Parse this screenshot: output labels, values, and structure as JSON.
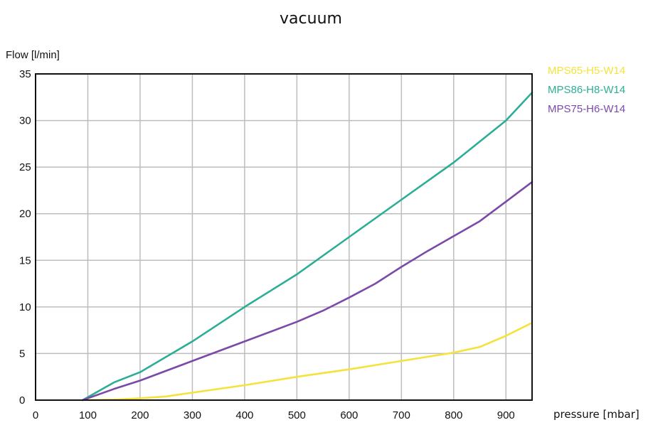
{
  "chart_data": {
    "type": "line",
    "title": "vacuum",
    "ylabel": "Flow [l/min]",
    "xlabel": "pressure [mbar]",
    "xlim": [
      0,
      950
    ],
    "ylim": [
      0,
      35
    ],
    "xticks": [
      0,
      100,
      200,
      300,
      400,
      500,
      600,
      700,
      800,
      900
    ],
    "yticks": [
      0,
      5,
      10,
      15,
      20,
      25,
      30,
      35
    ],
    "grid": true,
    "legend": "right, outside plot",
    "series": [
      {
        "name": "MPS65-H5-W14",
        "color": "#f5e23c",
        "x": [
          100,
          150,
          200,
          250,
          300,
          400,
          500,
          600,
          700,
          800,
          850,
          900,
          950
        ],
        "y": [
          0,
          0.05,
          0.2,
          0.4,
          0.8,
          1.6,
          2.5,
          3.3,
          4.2,
          5.1,
          5.7,
          6.9,
          8.3
        ]
      },
      {
        "name": "MPS86-H8-W14",
        "color": "#2cae96",
        "x": [
          90,
          150,
          200,
          300,
          400,
          500,
          600,
          700,
          800,
          900,
          950
        ],
        "y": [
          0,
          1.9,
          3.0,
          6.3,
          10.0,
          13.5,
          17.5,
          21.5,
          25.5,
          30.0,
          33.0
        ]
      },
      {
        "name": "MPS75-H6-W14",
        "color": "#7b4aa8",
        "x": [
          90,
          150,
          200,
          300,
          400,
          500,
          550,
          600,
          650,
          700,
          750,
          800,
          850,
          900,
          950
        ],
        "y": [
          0,
          1.2,
          2.1,
          4.2,
          6.3,
          8.4,
          9.6,
          11.0,
          12.5,
          14.3,
          16.0,
          17.6,
          19.2,
          21.3,
          23.4
        ]
      }
    ]
  }
}
